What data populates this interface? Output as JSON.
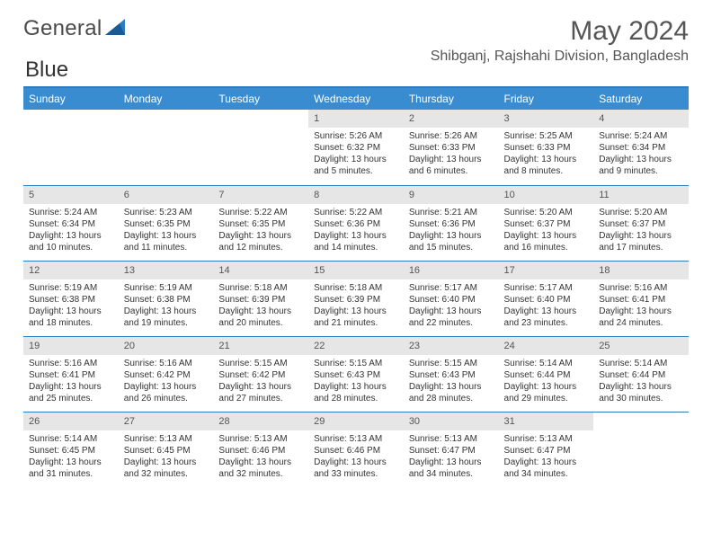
{
  "brand": {
    "part1": "General",
    "part2": "Blue"
  },
  "title": {
    "month": "May 2024",
    "location": "Shibganj, Rajshahi Division, Bangladesh"
  },
  "colors": {
    "blue": "#2e7cc0",
    "header": "#3a8cd0",
    "row_gray": "#e6e6e6",
    "row_gray_alt": "#efefef",
    "text": "#333",
    "background": "#ffffff"
  },
  "typography": {
    "month_fontsize": 30,
    "location_fontsize": 16,
    "dayhdr_fontsize": 12,
    "cell_fontsize": 10
  },
  "day_headers": [
    "Sunday",
    "Monday",
    "Tuesday",
    "Wednesday",
    "Thursday",
    "Friday",
    "Saturday"
  ],
  "weeks": [
    [
      null,
      null,
      null,
      {
        "d": "1",
        "sr": "5:26 AM",
        "ss": "6:32 PM",
        "dl": "13 hours and 5 minutes."
      },
      {
        "d": "2",
        "sr": "5:26 AM",
        "ss": "6:33 PM",
        "dl": "13 hours and 6 minutes."
      },
      {
        "d": "3",
        "sr": "5:25 AM",
        "ss": "6:33 PM",
        "dl": "13 hours and 8 minutes."
      },
      {
        "d": "4",
        "sr": "5:24 AM",
        "ss": "6:34 PM",
        "dl": "13 hours and 9 minutes."
      }
    ],
    [
      {
        "d": "5",
        "sr": "5:24 AM",
        "ss": "6:34 PM",
        "dl": "13 hours and 10 minutes."
      },
      {
        "d": "6",
        "sr": "5:23 AM",
        "ss": "6:35 PM",
        "dl": "13 hours and 11 minutes."
      },
      {
        "d": "7",
        "sr": "5:22 AM",
        "ss": "6:35 PM",
        "dl": "13 hours and 12 minutes."
      },
      {
        "d": "8",
        "sr": "5:22 AM",
        "ss": "6:36 PM",
        "dl": "13 hours and 14 minutes."
      },
      {
        "d": "9",
        "sr": "5:21 AM",
        "ss": "6:36 PM",
        "dl": "13 hours and 15 minutes."
      },
      {
        "d": "10",
        "sr": "5:20 AM",
        "ss": "6:37 PM",
        "dl": "13 hours and 16 minutes."
      },
      {
        "d": "11",
        "sr": "5:20 AM",
        "ss": "6:37 PM",
        "dl": "13 hours and 17 minutes."
      }
    ],
    [
      {
        "d": "12",
        "sr": "5:19 AM",
        "ss": "6:38 PM",
        "dl": "13 hours and 18 minutes."
      },
      {
        "d": "13",
        "sr": "5:19 AM",
        "ss": "6:38 PM",
        "dl": "13 hours and 19 minutes."
      },
      {
        "d": "14",
        "sr": "5:18 AM",
        "ss": "6:39 PM",
        "dl": "13 hours and 20 minutes."
      },
      {
        "d": "15",
        "sr": "5:18 AM",
        "ss": "6:39 PM",
        "dl": "13 hours and 21 minutes."
      },
      {
        "d": "16",
        "sr": "5:17 AM",
        "ss": "6:40 PM",
        "dl": "13 hours and 22 minutes."
      },
      {
        "d": "17",
        "sr": "5:17 AM",
        "ss": "6:40 PM",
        "dl": "13 hours and 23 minutes."
      },
      {
        "d": "18",
        "sr": "5:16 AM",
        "ss": "6:41 PM",
        "dl": "13 hours and 24 minutes."
      }
    ],
    [
      {
        "d": "19",
        "sr": "5:16 AM",
        "ss": "6:41 PM",
        "dl": "13 hours and 25 minutes."
      },
      {
        "d": "20",
        "sr": "5:16 AM",
        "ss": "6:42 PM",
        "dl": "13 hours and 26 minutes."
      },
      {
        "d": "21",
        "sr": "5:15 AM",
        "ss": "6:42 PM",
        "dl": "13 hours and 27 minutes."
      },
      {
        "d": "22",
        "sr": "5:15 AM",
        "ss": "6:43 PM",
        "dl": "13 hours and 28 minutes."
      },
      {
        "d": "23",
        "sr": "5:15 AM",
        "ss": "6:43 PM",
        "dl": "13 hours and 28 minutes."
      },
      {
        "d": "24",
        "sr": "5:14 AM",
        "ss": "6:44 PM",
        "dl": "13 hours and 29 minutes."
      },
      {
        "d": "25",
        "sr": "5:14 AM",
        "ss": "6:44 PM",
        "dl": "13 hours and 30 minutes."
      }
    ],
    [
      {
        "d": "26",
        "sr": "5:14 AM",
        "ss": "6:45 PM",
        "dl": "13 hours and 31 minutes."
      },
      {
        "d": "27",
        "sr": "5:13 AM",
        "ss": "6:45 PM",
        "dl": "13 hours and 32 minutes."
      },
      {
        "d": "28",
        "sr": "5:13 AM",
        "ss": "6:46 PM",
        "dl": "13 hours and 32 minutes."
      },
      {
        "d": "29",
        "sr": "5:13 AM",
        "ss": "6:46 PM",
        "dl": "13 hours and 33 minutes."
      },
      {
        "d": "30",
        "sr": "5:13 AM",
        "ss": "6:47 PM",
        "dl": "13 hours and 34 minutes."
      },
      {
        "d": "31",
        "sr": "5:13 AM",
        "ss": "6:47 PM",
        "dl": "13 hours and 34 minutes."
      },
      null
    ]
  ],
  "labels": {
    "sunrise": "Sunrise:",
    "sunset": "Sunset:",
    "daylight": "Daylight:"
  }
}
